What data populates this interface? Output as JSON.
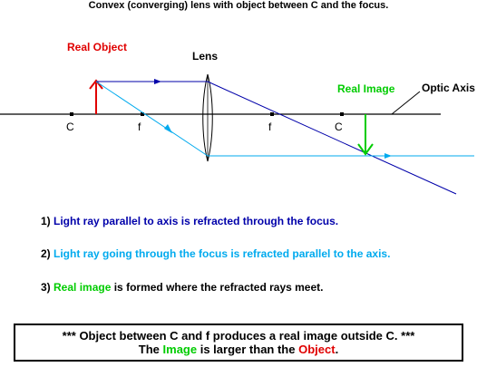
{
  "title": "Convex (converging) lens with object between C and the focus.",
  "labels": {
    "real_object": "Real Object",
    "lens": "Lens",
    "real_image": "Real Image",
    "optic_axis": "Optic Axis",
    "c_left": "C",
    "f_left": "f",
    "f_right": "f",
    "c_right": "C"
  },
  "notes": [
    {
      "number": "1)",
      "colored": "Light ray parallel to axis is refracted through the focus.",
      "rest": ""
    },
    {
      "number": "2)",
      "colored": "Light ray going through the focus is refracted parallel to the axis.",
      "rest": ""
    },
    {
      "number": "3)",
      "colored": "Real image",
      "rest": " is formed where the refracted rays meet."
    }
  ],
  "summary": {
    "line1": "*** Object between C and f produces a real image outside C. ***",
    "line2_prefix": "The ",
    "line2_image": "Image",
    "line2_middle": " is larger than the ",
    "line2_object": "Object",
    "line2_suffix": "."
  },
  "colors": {
    "object": "#e00000",
    "image": "#00cc00",
    "ray_parallel": "#0000aa",
    "ray_focus": "#00aaee",
    "axis": "#000000"
  }
}
